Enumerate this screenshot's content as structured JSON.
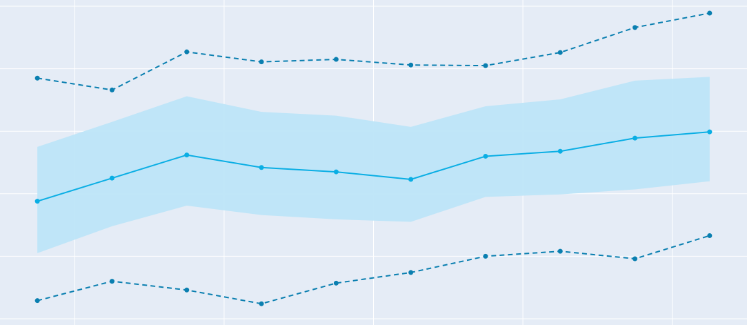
{
  "chart_data": {
    "type": "line",
    "title": "",
    "xlabel": "",
    "ylabel": "",
    "x": [
      1,
      2,
      3,
      4,
      5,
      6,
      7,
      8,
      9,
      10
    ],
    "xlim": [
      0.5,
      10.5
    ],
    "ylim": [
      -0.1,
      5.1
    ],
    "grid": true,
    "background": "#e5ecf6",
    "grid_color": "#ffffff",
    "series": [
      {
        "role": "upper-dashed",
        "style": "dashed",
        "color": "#0a7fb0",
        "values": [
          3.85,
          3.66,
          4.27,
          4.11,
          4.15,
          4.06,
          4.05,
          4.26,
          4.66,
          4.89
        ]
      },
      {
        "role": "band",
        "color": "#bde5f8",
        "upper": [
          2.75,
          3.15,
          3.56,
          3.31,
          3.25,
          3.07,
          3.4,
          3.51,
          3.81,
          3.87
        ],
        "lower": [
          1.05,
          1.48,
          1.81,
          1.66,
          1.59,
          1.55,
          1.95,
          1.99,
          2.07,
          2.2
        ]
      },
      {
        "role": "mean",
        "style": "solid",
        "color": "#0aaee4",
        "values": [
          1.88,
          2.25,
          2.62,
          2.42,
          2.35,
          2.23,
          2.6,
          2.68,
          2.89,
          2.99
        ]
      },
      {
        "role": "lower-dashed",
        "style": "dashed",
        "color": "#0a7fb0",
        "values": [
          0.29,
          0.6,
          0.46,
          0.24,
          0.57,
          0.74,
          1.0,
          1.08,
          0.96,
          1.33
        ]
      }
    ]
  }
}
